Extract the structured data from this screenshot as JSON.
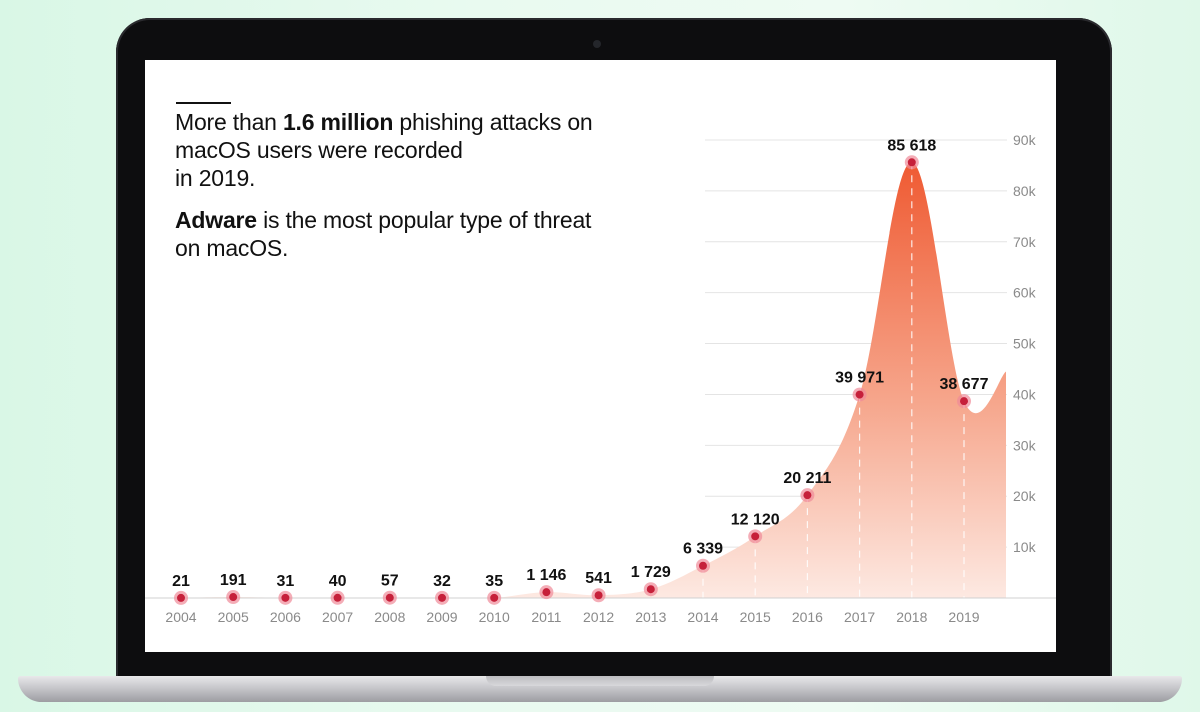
{
  "text": {
    "line1_prefix": "More than ",
    "line1_bold": "1.6 million",
    "line1_suffix": " phishing attacks on",
    "line2": "macOS users were recorded",
    "line3": "in 2019.",
    "para2_bold": "Adware",
    "para2_line1_suffix": " is the most popular type of threat",
    "para2_line2": "on macOS."
  },
  "colors": {
    "area_top": "#ef5a32",
    "area_bottom": "#fde9e2",
    "point": "#c6203a",
    "point_halo": "#f08a98",
    "axis_text": "#8a8a8a",
    "grid": "#e4e4e4"
  },
  "chart_data": {
    "type": "area",
    "x": [
      "2004",
      "2005",
      "2006",
      "2007",
      "2008",
      "2009",
      "2010",
      "2011",
      "2012",
      "2013",
      "2014",
      "2015",
      "2016",
      "2017",
      "2018",
      "2019"
    ],
    "values": [
      21,
      191,
      31,
      40,
      57,
      32,
      35,
      1146,
      541,
      1729,
      6339,
      12120,
      20211,
      39971,
      85618,
      38677
    ],
    "value_labels": [
      "21",
      "191",
      "31",
      "40",
      "57",
      "32",
      "35",
      "1 146",
      "541",
      "1 729",
      "6 339",
      "12 120",
      "20 211",
      "39 971",
      "85 618",
      "38 677"
    ],
    "ylim": [
      0,
      90000
    ],
    "yticks": [
      10000,
      20000,
      30000,
      40000,
      50000,
      60000,
      70000,
      80000,
      90000
    ],
    "ytick_labels": [
      "10k",
      "20k",
      "30k",
      "40k",
      "50k",
      "60k",
      "70k",
      "80k",
      "90k"
    ],
    "y_axis_side": "right",
    "grid": true
  }
}
